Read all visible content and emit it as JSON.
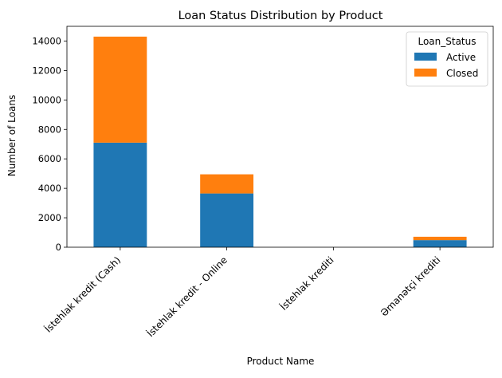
{
  "chart_data": {
    "type": "bar",
    "stacked": true,
    "title": "Loan Status Distribution by Product",
    "xlabel": "Product Name",
    "ylabel": "Number of Loans",
    "categories": [
      "İstehlak kredit (Cash)",
      "İstehlak kredit - Online",
      "İstehlak krediti",
      "Əmanətçi krediti"
    ],
    "series": [
      {
        "name": "Active",
        "color": "#1f77b4",
        "values": [
          7100,
          3650,
          0,
          480
        ]
      },
      {
        "name": "Closed",
        "color": "#ff7f0e",
        "values": [
          7200,
          1300,
          0,
          230
        ]
      }
    ],
    "ylim": [
      0,
      15000
    ],
    "yticks": [
      0,
      2000,
      4000,
      6000,
      8000,
      10000,
      12000,
      14000
    ],
    "legend": {
      "title": "Loan_Status",
      "placement": "top-right"
    },
    "grid": false
  }
}
